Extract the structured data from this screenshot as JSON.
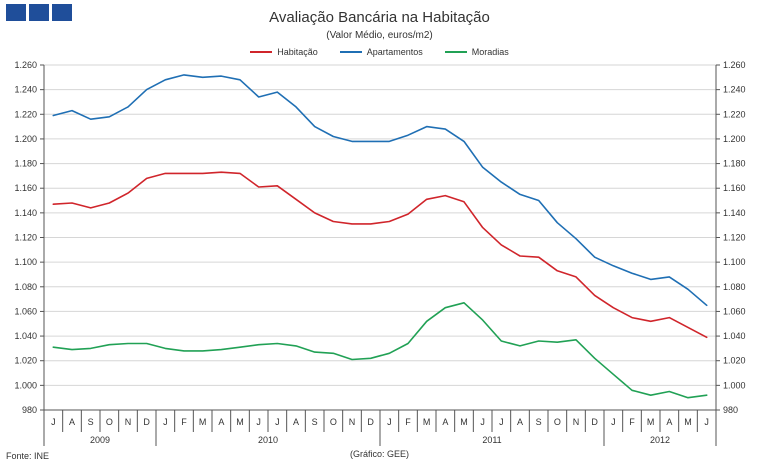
{
  "header": {
    "title": "Avaliação Bancária na Habitação",
    "subtitle": "(Valor Médio, euros/m2)"
  },
  "footer": {
    "source": "Fonte: INE",
    "credit": "(Gráfico: GEE)"
  },
  "chart_data": {
    "type": "line",
    "title": "Avaliação Bancária na Habitação",
    "subtitle": "(Valor Médio, euros/m2)",
    "xlabel": "",
    "ylabel": "",
    "ylim": [
      980,
      1260
    ],
    "yticks": [
      980,
      1000,
      1020,
      1040,
      1060,
      1080,
      1100,
      1120,
      1140,
      1160,
      1180,
      1200,
      1220,
      1240,
      1260
    ],
    "ytick_labels": [
      "980",
      "1.000",
      "1.020",
      "1.040",
      "1.060",
      "1.080",
      "1.100",
      "1.120",
      "1.140",
      "1.160",
      "1.180",
      "1.200",
      "1.220",
      "1.240",
      "1.260"
    ],
    "grid": true,
    "legend_position": "top-center",
    "categories": [
      "J",
      "A",
      "S",
      "O",
      "N",
      "D",
      "J",
      "F",
      "M",
      "A",
      "M",
      "J",
      "J",
      "A",
      "S",
      "O",
      "N",
      "D",
      "J",
      "F",
      "M",
      "A",
      "M",
      "J",
      "J",
      "A",
      "S",
      "O",
      "N",
      "D",
      "J",
      "F",
      "M",
      "A",
      "M",
      "J"
    ],
    "years": [
      {
        "label": "2009",
        "start": 0,
        "end": 5
      },
      {
        "label": "2010",
        "start": 6,
        "end": 17
      },
      {
        "label": "2011",
        "start": 18,
        "end": 29
      },
      {
        "label": "2012",
        "start": 30,
        "end": 35
      }
    ],
    "series": [
      {
        "name": "Habitação",
        "color": "#d0252b",
        "values": [
          1147,
          1148,
          1144,
          1148,
          1156,
          1168,
          1172,
          1172,
          1172,
          1173,
          1172,
          1161,
          1162,
          1151,
          1140,
          1133,
          1131,
          1131,
          1133,
          1139,
          1151,
          1154,
          1149,
          1128,
          1114,
          1105,
          1104,
          1093,
          1088,
          1073,
          1063,
          1055,
          1052,
          1055,
          1047,
          1039
        ]
      },
      {
        "name": "Apartamentos",
        "color": "#1f6fb4",
        "values": [
          1219,
          1223,
          1216,
          1218,
          1226,
          1240,
          1248,
          1252,
          1250,
          1251,
          1248,
          1234,
          1238,
          1226,
          1210,
          1202,
          1198,
          1198,
          1198,
          1203,
          1210,
          1208,
          1198,
          1177,
          1165,
          1155,
          1150,
          1132,
          1119,
          1104,
          1097,
          1091,
          1086,
          1088,
          1078,
          1065
        ]
      },
      {
        "name": "Moradias",
        "color": "#21a155",
        "values": [
          1031,
          1029,
          1030,
          1033,
          1034,
          1034,
          1030,
          1028,
          1028,
          1029,
          1031,
          1033,
          1034,
          1032,
          1027,
          1026,
          1021,
          1022,
          1026,
          1034,
          1052,
          1063,
          1067,
          1053,
          1036,
          1032,
          1036,
          1035,
          1037,
          1022,
          1009,
          996,
          992,
          995,
          990,
          992
        ]
      }
    ]
  }
}
